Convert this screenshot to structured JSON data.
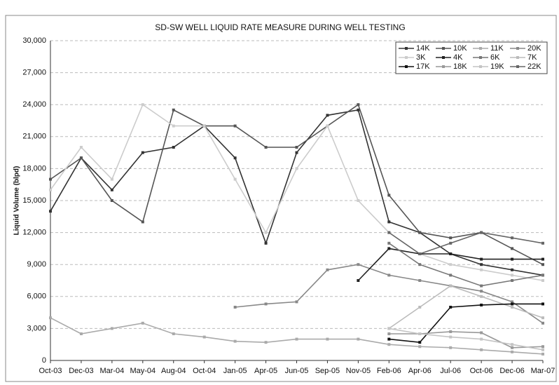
{
  "chart_data": {
    "type": "line",
    "title": "SD-SW  WELL LIQUID RATE MEASURE DURING WELL TESTING",
    "y_label": "Liquid Volume (blpd)",
    "categories": [
      "Oct-03",
      "Dec-03",
      "Mar-04",
      "May-04",
      "Aug-04",
      "Oct-04",
      "Jan-05",
      "Apr-05",
      "Jun-05",
      "Sep-05",
      "Nov-05",
      "Feb-06",
      "Apr-06",
      "Jul-06",
      "Oct-06",
      "Dec-06",
      "Mar-07"
    ],
    "ylim": [
      0,
      30000
    ],
    "yticks": [
      0,
      {
        "value": 3000,
        "label": "3,000"
      },
      {
        "value": 6000,
        "label": "6,000"
      },
      {
        "value": 9000,
        "label": "9,000"
      },
      {
        "value": 12000,
        "label": "12,000"
      },
      {
        "value": 15000,
        "label": "15,000"
      },
      {
        "value": 18000,
        "label": "18,000"
      },
      {
        "value": 21000,
        "label": "21,000"
      },
      {
        "value": 24000,
        "label": "24,000"
      },
      {
        "value": 27000,
        "label": "27,000"
      },
      {
        "value": 30000,
        "label": "30,000"
      }
    ],
    "grid": true,
    "legend": "top-right",
    "series": [
      {
        "name": "14K",
        "color": "#333333",
        "values": [
          14000,
          19000,
          16000,
          19500,
          20000,
          22000,
          19000,
          11000,
          19500,
          23000,
          23500,
          13000,
          12000,
          10000,
          9000,
          8500,
          8000
        ]
      },
      {
        "name": "10K",
        "color": "#555555",
        "values": [
          17000,
          19000,
          15000,
          13000,
          23500,
          22000,
          22000,
          20000,
          20000,
          22000,
          24000,
          15500,
          12000,
          11500,
          12000,
          10500,
          9000
        ]
      },
      {
        "name": "11K",
        "color": "#aaaaaa",
        "values": [
          4000,
          2500,
          3000,
          3500,
          2500,
          2200,
          1800,
          1700,
          2000,
          2000,
          2000,
          1500,
          1300,
          1200,
          1000,
          800,
          600
        ]
      },
      {
        "name": "20K",
        "color": "#888888",
        "values": [
          null,
          null,
          null,
          null,
          null,
          null,
          5000,
          5300,
          5500,
          8500,
          9000,
          8000,
          7500,
          7000,
          6500,
          5500,
          3500
        ]
      },
      {
        "name": "3K",
        "color": "#cccccc",
        "values": [
          16000,
          20000,
          17000,
          24000,
          22000,
          22000,
          17000,
          12000,
          18000,
          22000,
          15000,
          12000,
          10000,
          9000,
          8500,
          8000,
          7500
        ]
      },
      {
        "name": "4K",
        "color": "#222222",
        "values": [
          null,
          null,
          null,
          null,
          null,
          null,
          null,
          null,
          null,
          null,
          7500,
          10500,
          10000,
          10000,
          9500,
          9500,
          9500
        ]
      },
      {
        "name": "6K",
        "color": "#777777",
        "values": [
          null,
          null,
          null,
          null,
          null,
          null,
          null,
          null,
          null,
          null,
          null,
          11000,
          9000,
          8000,
          7000,
          7500,
          8000
        ]
      },
      {
        "name": "7K",
        "color": "#bbbbbb",
        "values": [
          null,
          null,
          null,
          null,
          null,
          null,
          null,
          null,
          null,
          null,
          null,
          3000,
          5000,
          7000,
          6000,
          5000,
          4000
        ]
      },
      {
        "name": "17K",
        "color": "#111111",
        "values": [
          null,
          null,
          null,
          null,
          null,
          null,
          null,
          null,
          null,
          null,
          null,
          2000,
          1700,
          5000,
          5200,
          5300,
          5300
        ]
      },
      {
        "name": "18K",
        "color": "#999999",
        "values": [
          null,
          null,
          null,
          null,
          null,
          null,
          null,
          null,
          null,
          null,
          null,
          2500,
          2500,
          2700,
          2600,
          1200,
          1300
        ]
      },
      {
        "name": "19K",
        "color": "#c4c4c4",
        "values": [
          null,
          null,
          null,
          null,
          null,
          null,
          null,
          null,
          null,
          null,
          null,
          3000,
          2500,
          2200,
          2000,
          1500,
          1000
        ]
      },
      {
        "name": "22K",
        "color": "#666666",
        "values": [
          null,
          null,
          null,
          null,
          null,
          null,
          null,
          null,
          null,
          null,
          null,
          12000,
          10000,
          11000,
          12000,
          11500,
          11000
        ]
      }
    ]
  }
}
